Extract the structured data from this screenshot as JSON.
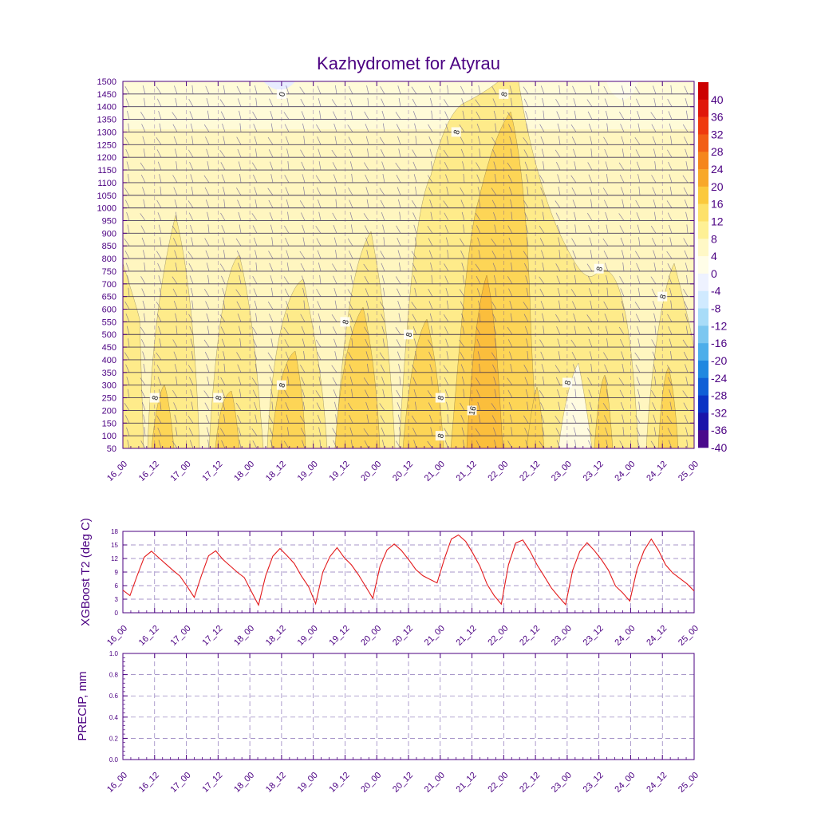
{
  "colors": {
    "axis": "#4b0082",
    "t2_line": "#e31a1c",
    "grid": "#5a3a9a",
    "wind_barb": "#5b4f8f",
    "contour_label": "#222222"
  },
  "chart_data": [
    {
      "id": "cross-section",
      "type": "heatmap",
      "title": "Kazhydromet for Atyrau",
      "xlabel": "",
      "ylabel": "",
      "x_ticks": [
        "16_00",
        "16_12",
        "17_00",
        "17_12",
        "18_00",
        "18_12",
        "19_00",
        "19_12",
        "20_00",
        "20_12",
        "21_00",
        "21_12",
        "22_00",
        "22_12",
        "23_00",
        "23_12",
        "24_00",
        "24_12",
        "25_00"
      ],
      "y_ticks": [
        1500,
        1450,
        1400,
        1350,
        1300,
        1250,
        1200,
        1150,
        1100,
        1050,
        1000,
        950,
        900,
        850,
        800,
        750,
        700,
        650,
        600,
        550,
        500,
        450,
        400,
        350,
        300,
        250,
        200,
        150,
        100,
        50
      ],
      "ylim": [
        50,
        1500
      ],
      "colorbar": {
        "labels": [
          "40",
          "36",
          "32",
          "28",
          "24",
          "20",
          "16",
          "12",
          "8",
          "4",
          "0",
          "-4",
          "-8",
          "-12",
          "-16",
          "-20",
          "-24",
          "-28",
          "-32",
          "-36",
          "-40"
        ],
        "colors": [
          "#cc0000",
          "#e0180a",
          "#ef3a0e",
          "#f25e15",
          "#f5861c",
          "#f8a829",
          "#fbc93d",
          "#fde16a",
          "#fef095",
          "#fff8c6",
          "#fffde8",
          "#eef2ff",
          "#d0eaff",
          "#a8dcf8",
          "#7cc7f0",
          "#4daeea",
          "#2088e0",
          "#0f5fd6",
          "#0a33c4",
          "#1a14aa",
          "#4a0a8c"
        ],
        "bands": [
          {
            "range": [
              4,
              8
            ],
            "color": "#fff6c0"
          },
          {
            "range": [
              8,
              12
            ],
            "color": "#feeb8a"
          },
          {
            "range": [
              12,
              16
            ],
            "color": "#fdd556"
          },
          {
            "range": [
              16,
              20
            ],
            "color": "#fbbe3c"
          }
        ]
      },
      "contour_labels": [
        {
          "text": "0",
          "x": "18_12",
          "y": 1450
        },
        {
          "text": "8",
          "x": "22_00",
          "y": 1450
        },
        {
          "text": "8",
          "x": "21_06",
          "y": 1300
        },
        {
          "text": "8",
          "x": "23_12",
          "y": 760
        },
        {
          "text": "8",
          "x": "24_12",
          "y": 650
        },
        {
          "text": "8",
          "x": "19_12",
          "y": 550
        },
        {
          "text": "8",
          "x": "20_12",
          "y": 500
        },
        {
          "text": "8",
          "x": "18_12",
          "y": 300
        },
        {
          "text": "8",
          "x": "16_12",
          "y": 250
        },
        {
          "text": "8",
          "x": "17_12",
          "y": 250
        },
        {
          "text": "8",
          "x": "21_00",
          "y": 250
        },
        {
          "text": "8",
          "x": "23_00",
          "y": 310
        },
        {
          "text": "16",
          "x": "21_12",
          "y": 200
        },
        {
          "text": "8",
          "x": "21_00",
          "y": 100
        }
      ]
    },
    {
      "id": "t2",
      "type": "line",
      "title": "",
      "xlabel": "",
      "ylabel": "XGBoost T2 (deg C)",
      "ylim": [
        0,
        18
      ],
      "y_ticks": [
        0,
        3,
        6,
        9,
        12,
        15,
        18
      ],
      "x_ticks": [
        "16_00",
        "16_12",
        "17_00",
        "17_12",
        "18_00",
        "18_12",
        "19_00",
        "19_12",
        "20_00",
        "20_12",
        "21_00",
        "21_12",
        "22_00",
        "22_12",
        "23_00",
        "23_12",
        "24_00",
        "24_12",
        "25_00"
      ],
      "values": [
        5,
        3.8,
        8.2,
        12.3,
        13.6,
        12.2,
        10.8,
        9.4,
        8.1,
        5.8,
        3.4,
        8.2,
        12.6,
        13.7,
        11.8,
        10.4,
        9.0,
        7.8,
        4.7,
        1.7,
        8.2,
        12.5,
        14.2,
        12.6,
        10.9,
        8.1,
        5.8,
        2.0,
        9.0,
        12.4,
        14.4,
        12.2,
        10.6,
        8.4,
        5.8,
        3.2,
        10.2,
        13.9,
        15.2,
        13.8,
        11.8,
        9.6,
        8.2,
        7.4,
        6.6,
        11.8,
        16.3,
        17.2,
        15.8,
        13.2,
        10.3,
        6.3,
        3.8,
        1.9,
        10.6,
        15.4,
        16.1,
        13.7,
        10.6,
        8.1,
        5.5,
        3.6,
        1.8,
        9.4,
        13.6,
        15.5,
        13.8,
        11.8,
        9.4,
        5.9,
        4.4,
        2.6,
        9.6,
        13.8,
        16.3,
        13.8,
        10.6,
        8.8,
        7.6,
        6.4,
        4.8
      ]
    },
    {
      "id": "precip",
      "type": "line",
      "title": "",
      "xlabel": "",
      "ylabel": "PRECIP, mm",
      "ylim": [
        0,
        1
      ],
      "y_ticks": [
        "0.0",
        "0.2",
        "0.4",
        "0.6",
        "0.8",
        "1.0"
      ],
      "x_ticks": [
        "16_00",
        "16_12",
        "17_00",
        "17_12",
        "18_00",
        "18_12",
        "19_00",
        "19_12",
        "20_00",
        "20_12",
        "21_00",
        "21_12",
        "22_00",
        "22_12",
        "23_00",
        "23_12",
        "24_00",
        "24_12",
        "25_00"
      ],
      "values": []
    }
  ]
}
